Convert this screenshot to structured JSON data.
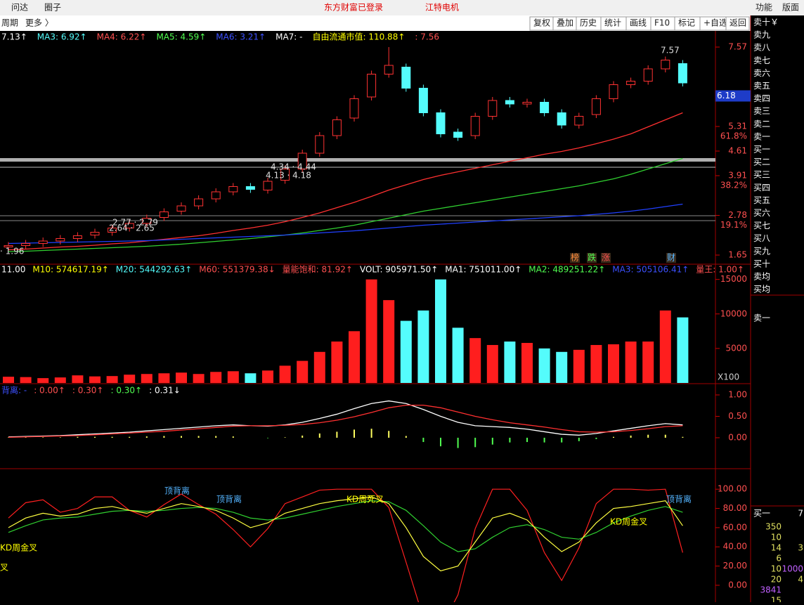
{
  "topbar": {
    "left": [
      "问达",
      "圈子"
    ],
    "center": "东方财富已登录",
    "stock": "江特电机",
    "right": [
      "功能",
      "版面"
    ]
  },
  "toolbar": {
    "left": "周期",
    "more": "更多 〉",
    "buttons": [
      "复权",
      "叠加",
      "历史",
      "统计",
      "画线",
      "F10",
      "标记",
      "+自选",
      "返回"
    ]
  },
  "price_panel": {
    "legend": [
      {
        "text": "7.13↑",
        "color": "#ffffff"
      },
      {
        "text": "MA3: 6.92↑",
        "color": "#54fcfc"
      },
      {
        "text": "MA4: 6.22↑",
        "color": "#ff5050"
      },
      {
        "text": "MA5: 4.59↑",
        "color": "#50ff50"
      },
      {
        "text": "MA6: 3.21↑",
        "color": "#3c50ff"
      },
      {
        "text": "MA7: -",
        "color": "#ffffff"
      },
      {
        "text": "自由流通市值: 110.88↑",
        "color": "#ffff00"
      },
      {
        "text": ": 7.56",
        "color": "#ff5050"
      }
    ],
    "ylim": [
      1.41,
      8.03
    ],
    "yticks": [
      7.57,
      5.31,
      4.61,
      3.91,
      2.78,
      1.65
    ],
    "current": 6.18,
    "fib_levels": [
      "61.8%",
      "38.2%",
      "19.1%"
    ],
    "annotations": [
      "4.34 · 4.44",
      "4.13 · 4.18",
      "2.77 · 2.79",
      "2.64 · 2.65",
      "· 1.96",
      "7.57"
    ],
    "markers": [
      "榜",
      "跌",
      "涨",
      "财"
    ],
    "open": [
      1.88,
      1.92,
      1.98,
      2.05,
      2.12,
      2.22,
      2.3,
      2.42,
      2.55,
      2.72,
      2.9,
      3.05,
      3.25,
      3.45,
      3.6,
      3.5,
      3.78,
      4.1,
      4.55,
      5.05,
      5.55,
      6.15,
      6.8,
      7.0,
      6.4,
      5.7,
      5.15,
      5.05,
      5.6,
      6.05,
      5.95,
      6.0,
      5.7,
      5.35,
      5.65,
      6.1,
      6.5,
      6.6,
      6.95,
      7.1
    ],
    "close": [
      1.92,
      1.98,
      2.05,
      2.12,
      2.2,
      2.3,
      2.42,
      2.55,
      2.7,
      2.88,
      3.05,
      3.25,
      3.45,
      3.6,
      3.52,
      3.75,
      4.1,
      4.55,
      5.05,
      5.5,
      6.1,
      6.8,
      7.05,
      6.4,
      5.7,
      5.1,
      5.0,
      5.6,
      6.05,
      5.95,
      6.0,
      5.7,
      5.35,
      5.6,
      6.1,
      6.5,
      6.6,
      6.95,
      7.2,
      6.55
    ],
    "high": [
      2.02,
      2.08,
      2.15,
      2.22,
      2.3,
      2.4,
      2.52,
      2.65,
      2.8,
      2.98,
      3.15,
      3.35,
      3.55,
      3.7,
      3.7,
      3.85,
      4.2,
      4.65,
      5.15,
      5.6,
      6.2,
      6.9,
      7.57,
      7.1,
      6.5,
      5.8,
      5.25,
      5.7,
      6.15,
      6.15,
      6.1,
      6.1,
      5.8,
      5.7,
      6.2,
      6.6,
      6.7,
      7.05,
      7.3,
      7.2
    ],
    "low": [
      1.78,
      1.82,
      1.88,
      1.95,
      2.02,
      2.12,
      2.2,
      2.32,
      2.45,
      2.62,
      2.8,
      2.95,
      3.15,
      3.35,
      3.42,
      3.4,
      3.68,
      4.0,
      4.45,
      4.95,
      5.45,
      6.05,
      6.7,
      6.3,
      5.6,
      5.0,
      4.9,
      4.95,
      5.5,
      5.85,
      5.85,
      5.6,
      5.25,
      5.25,
      5.55,
      6.0,
      6.4,
      6.5,
      6.85,
      6.45
    ],
    "lines": [
      {
        "color": "#ff3030",
        "values": [
          1.8,
          1.82,
          1.85,
          1.88,
          1.9,
          1.93,
          1.97,
          2.0,
          2.05,
          2.1,
          2.15,
          2.2,
          2.27,
          2.35,
          2.42,
          2.5,
          2.6,
          2.72,
          2.85,
          3.0,
          3.15,
          3.32,
          3.5,
          3.65,
          3.8,
          3.92,
          4.02,
          4.12,
          4.22,
          4.32,
          4.42,
          4.52,
          4.6,
          4.7,
          4.82,
          4.95,
          5.1,
          5.3,
          5.5,
          5.7
        ]
      },
      {
        "color": "#30d030",
        "values": [
          1.75,
          1.76,
          1.78,
          1.8,
          1.82,
          1.84,
          1.86,
          1.88,
          1.9,
          1.93,
          1.96,
          2.0,
          2.04,
          2.08,
          2.12,
          2.17,
          2.22,
          2.28,
          2.35,
          2.42,
          2.5,
          2.6,
          2.7,
          2.8,
          2.9,
          2.98,
          3.06,
          3.14,
          3.22,
          3.3,
          3.38,
          3.46,
          3.54,
          3.62,
          3.72,
          3.82,
          3.95,
          4.1,
          4.25,
          4.4
        ]
      },
      {
        "color": "#2040ff",
        "values": [
          1.98,
          1.99,
          2.0,
          2.01,
          2.02,
          2.03,
          2.04,
          2.05,
          2.06,
          2.08,
          2.1,
          2.12,
          2.14,
          2.16,
          2.18,
          2.2,
          2.22,
          2.25,
          2.28,
          2.31,
          2.34,
          2.38,
          2.42,
          2.46,
          2.5,
          2.53,
          2.56,
          2.59,
          2.62,
          2.65,
          2.68,
          2.71,
          2.74,
          2.77,
          2.81,
          2.85,
          2.9,
          2.96,
          3.03,
          3.1
        ]
      }
    ]
  },
  "volume_panel": {
    "legend": [
      {
        "text": "11.00",
        "color": "#ffffff"
      },
      {
        "text": "M10: 574617.19↑",
        "color": "#ffff00"
      },
      {
        "text": "M20: 544292.63↑",
        "color": "#54fcfc"
      },
      {
        "text": "M60: 551379.38↓",
        "color": "#ff5050"
      },
      {
        "text": "量能饱和: 81.92↑",
        "color": "#ff5050"
      },
      {
        "text": "VOLT: 905971.50↑",
        "color": "#ffffff"
      },
      {
        "text": "MA1: 751011.00↑",
        "color": "#ffffff"
      },
      {
        "text": "MA2: 489251.22↑",
        "color": "#50ff50"
      },
      {
        "text": "MA3: 505106.41↑",
        "color": "#3c50ff"
      },
      {
        "text": "量王: 1.00↑",
        "color": "#ff5050"
      }
    ],
    "ylim": [
      0,
      17000
    ],
    "yticks": [
      15000,
      10000,
      5000
    ],
    "unit": "X100",
    "values": [
      900,
      850,
      700,
      800,
      1100,
      950,
      1000,
      1200,
      1300,
      1400,
      1500,
      1300,
      1600,
      1700,
      1400,
      1800,
      2500,
      3200,
      4500,
      6000,
      7500,
      15000,
      12000,
      9000,
      10500,
      15000,
      8000,
      6500,
      5500,
      6000,
      5800,
      5000,
      4500,
      4800,
      5500,
      5600,
      6000,
      6000,
      10500,
      9500
    ]
  },
  "macd_panel": {
    "legend": [
      {
        "text": "背离: -",
        "color": "#3c50ff"
      },
      {
        "text": ": 0.00↑",
        "color": "#ff5050"
      },
      {
        "text": ": 0.30↑",
        "color": "#ff5050"
      },
      {
        "text": ": 0.30↑",
        "color": "#50ff50"
      },
      {
        "text": ": 0.31↓",
        "color": "#ffffff"
      }
    ],
    "ylim": [
      -0.69,
      1.23
    ],
    "yticks": [
      {
        "value": 1,
        "label": "1.00"
      },
      {
        "value": 0.5,
        "label": "0.50"
      },
      {
        "value": 0,
        "label": "0.00"
      }
    ],
    "dif": [
      0.02,
      0.03,
      0.04,
      0.05,
      0.07,
      0.09,
      0.11,
      0.13,
      0.16,
      0.19,
      0.22,
      0.25,
      0.28,
      0.3,
      0.28,
      0.27,
      0.3,
      0.36,
      0.45,
      0.55,
      0.68,
      0.8,
      0.86,
      0.8,
      0.66,
      0.5,
      0.36,
      0.28,
      0.26,
      0.24,
      0.2,
      0.14,
      0.08,
      0.06,
      0.1,
      0.16,
      0.22,
      0.28,
      0.33,
      0.3
    ],
    "dea": [
      0.01,
      0.02,
      0.03,
      0.04,
      0.05,
      0.07,
      0.09,
      0.11,
      0.13,
      0.15,
      0.18,
      0.21,
      0.24,
      0.27,
      0.28,
      0.28,
      0.29,
      0.31,
      0.35,
      0.41,
      0.49,
      0.59,
      0.7,
      0.76,
      0.76,
      0.7,
      0.6,
      0.5,
      0.42,
      0.35,
      0.3,
      0.25,
      0.19,
      0.14,
      0.13,
      0.14,
      0.17,
      0.21,
      0.26,
      0.28
    ],
    "hist": [
      0.01,
      0.01,
      0.01,
      0.01,
      0.02,
      0.02,
      0.02,
      0.02,
      0.03,
      0.04,
      0.04,
      0.04,
      0.04,
      0.03,
      0,
      -0.01,
      0.01,
      0.05,
      0.1,
      0.14,
      0.19,
      0.21,
      0.16,
      0.04,
      -0.1,
      -0.2,
      -0.24,
      -0.22,
      -0.16,
      -0.11,
      -0.1,
      -0.11,
      -0.11,
      -0.08,
      -0.03,
      0.02,
      0.05,
      0.07,
      0.07,
      0.02
    ]
  },
  "kd_panel": {
    "ylim": [
      -17.6,
      119.9
    ],
    "yticks": [
      {
        "value": 100,
        "label": "100.00"
      },
      {
        "value": 80,
        "label": "80.00"
      },
      {
        "value": 60,
        "label": "60.00"
      },
      {
        "value": 40,
        "label": "40.00"
      },
      {
        "value": 20,
        "label": "20.00"
      },
      {
        "value": 0,
        "label": "0.00"
      }
    ],
    "annotations": [
      {
        "text": "顶背离",
        "color": "#54b4ff"
      },
      {
        "text": "顶背离",
        "color": "#54b4ff"
      },
      {
        "text": "KD周死叉",
        "color": "#ffff00"
      },
      {
        "text": "KD周金叉",
        "color": "#ffff00"
      },
      {
        "text": "叉",
        "color": "#ffff00"
      },
      {
        "text": "KD周金叉",
        "color": "#ffff00"
      },
      {
        "text": "顶背离",
        "color": "#54b4ff"
      }
    ],
    "k": [
      60,
      70,
      75,
      72,
      74,
      80,
      82,
      78,
      75,
      80,
      85,
      82,
      78,
      70,
      60,
      65,
      75,
      80,
      85,
      88,
      90,
      92,
      85,
      60,
      30,
      15,
      20,
      45,
      70,
      75,
      68,
      50,
      35,
      45,
      65,
      80,
      82,
      85,
      88,
      62
    ],
    "d": [
      55,
      62,
      68,
      70,
      71,
      74,
      77,
      78,
      77,
      78,
      80,
      81,
      80,
      76,
      70,
      68,
      70,
      74,
      78,
      82,
      85,
      88,
      87,
      78,
      62,
      45,
      35,
      38,
      50,
      60,
      63,
      58,
      50,
      48,
      55,
      65,
      72,
      78,
      82,
      76
    ],
    "j": [
      70,
      86,
      89,
      76,
      80,
      92,
      92,
      78,
      71,
      84,
      95,
      84,
      74,
      58,
      40,
      59,
      85,
      92,
      99,
      100,
      100,
      100,
      81,
      24,
      -34,
      -45,
      -10,
      59,
      100,
      100,
      78,
      34,
      5,
      39,
      85,
      100,
      100,
      99,
      100,
      34
    ]
  },
  "order_book": {
    "levels": [
      "卖十￥",
      "卖九",
      "卖八",
      "卖七",
      "卖六",
      "卖五",
      "卖四",
      "卖三",
      "卖二",
      "卖一",
      "买一",
      "买二",
      "买三",
      "买四",
      "买五",
      "买六",
      "买七",
      "买八",
      "买九",
      "买十",
      "卖均",
      "买均"
    ],
    "extra": "卖一",
    "bottom": [
      [
        "买一",
        "7"
      ],
      [
        "350"
      ],
      [
        "10"
      ],
      [
        "14",
        "3"
      ],
      [
        "6"
      ],
      [
        "10",
        "1000"
      ],
      [
        "20",
        "4"
      ],
      [
        "3841"
      ],
      [
        "15"
      ]
    ]
  }
}
